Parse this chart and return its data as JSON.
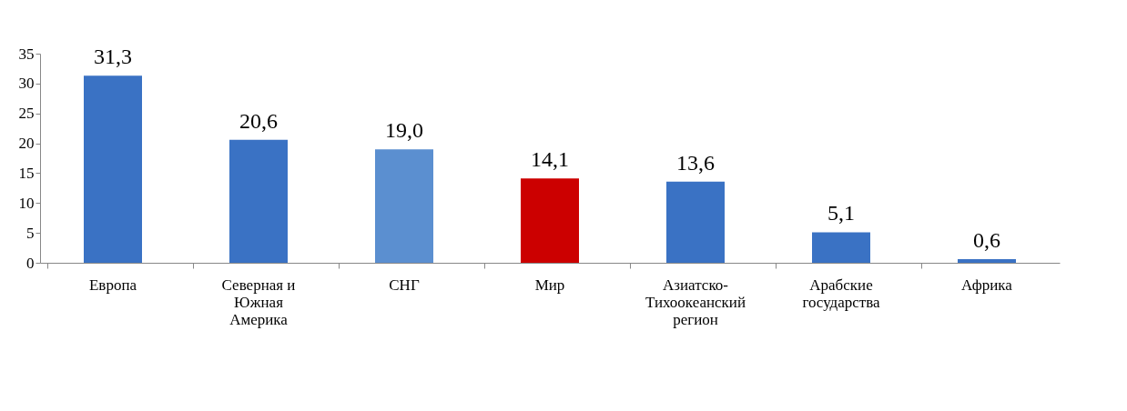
{
  "chart_data": {
    "type": "bar",
    "categories": [
      "Европа",
      "Северная и Южная Америка",
      "СНГ",
      "Мир",
      "Азиатско-Тихоокеанский регион",
      "Арабские государства",
      "Африка"
    ],
    "values": [
      31.3,
      20.6,
      19.0,
      14.1,
      13.6,
      5.1,
      0.6
    ],
    "value_labels": [
      "31,3",
      "20,6",
      "19,0",
      "14,1",
      "13,6",
      "5,1",
      "0,6"
    ],
    "colors": [
      "#3a72c4",
      "#3a72c4",
      "#5b8fd0",
      "#cc0000",
      "#3a72c4",
      "#3a72c4",
      "#3a72c4"
    ],
    "ylim": [
      0,
      35
    ],
    "yticks": [
      0,
      5,
      10,
      15,
      20,
      25,
      30,
      35
    ],
    "grid": false
  }
}
